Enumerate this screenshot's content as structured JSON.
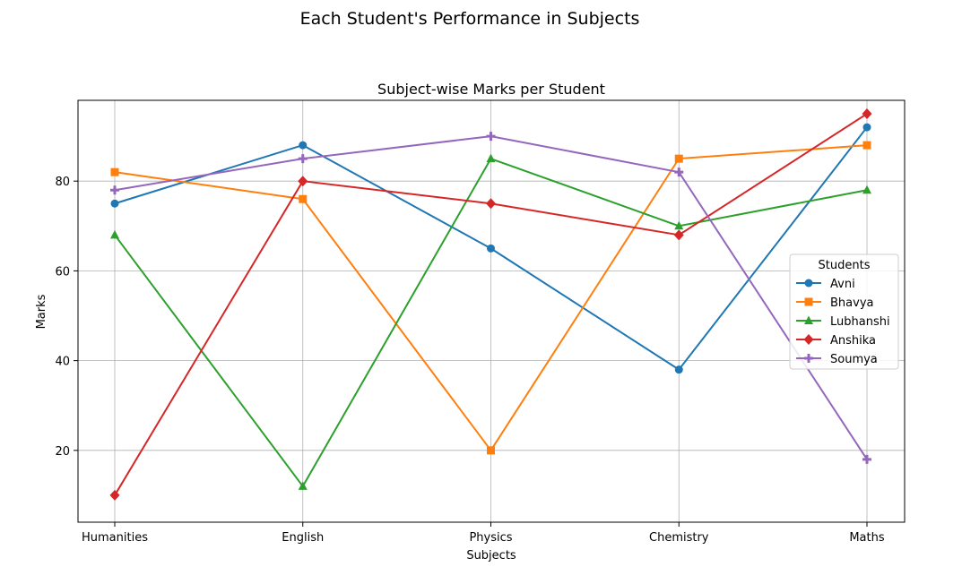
{
  "figure": {
    "suptitle": "Each Student's Performance in Subjects"
  },
  "chart_data": {
    "type": "line",
    "title": "Subject-wise Marks per Student",
    "xlabel": "Subjects",
    "ylabel": "Marks",
    "categories": [
      "Humanities",
      "English",
      "Physics",
      "Chemistry",
      "Maths"
    ],
    "ylim": [
      4,
      98
    ],
    "yticks": [
      20,
      40,
      60,
      80
    ],
    "grid": true,
    "legend": {
      "title": "Students",
      "placement": "center-right"
    },
    "series": [
      {
        "name": "Avni",
        "values": [
          75,
          88,
          65,
          38,
          92
        ],
        "color": "#1f77b4",
        "marker": "circle"
      },
      {
        "name": "Bhavya",
        "values": [
          82,
          76,
          20,
          85,
          88
        ],
        "color": "#ff7f0e",
        "marker": "square"
      },
      {
        "name": "Lubhanshi",
        "values": [
          68,
          12,
          85,
          70,
          78
        ],
        "color": "#2ca02c",
        "marker": "triangle"
      },
      {
        "name": "Anshika",
        "values": [
          10,
          80,
          75,
          68,
          95
        ],
        "color": "#d62728",
        "marker": "diamond"
      },
      {
        "name": "Soumya",
        "values": [
          78,
          85,
          90,
          82,
          18
        ],
        "color": "#9467bd",
        "marker": "plus"
      }
    ]
  }
}
